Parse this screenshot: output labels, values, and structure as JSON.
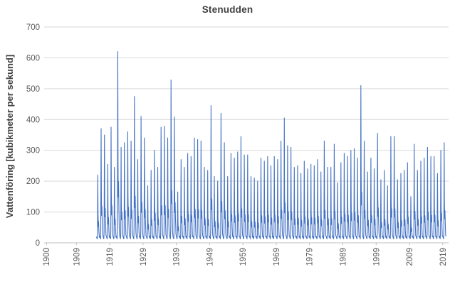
{
  "colors": {
    "line": "#4472C4",
    "gridline": "#D9D9D9",
    "axis_line": "#BFBFBF",
    "tick_label": "#595959",
    "title_text": "#404040",
    "background": "#FFFFFF"
  },
  "chart_data": {
    "type": "line",
    "title": "Stenudden",
    "ylabel": "Vattenföring [kubikmeter per sekund]",
    "xlabel": "",
    "legend": "none",
    "grid": "horizontal-only",
    "ylim": [
      0,
      700
    ],
    "y_ticks": [
      0,
      100,
      200,
      300,
      400,
      500,
      600,
      700
    ],
    "x_ticks": [
      1900,
      1909,
      1919,
      1929,
      1939,
      1949,
      1959,
      1969,
      1979,
      1989,
      1999,
      2009,
      2019
    ],
    "x_range_shown": [
      1900,
      2020
    ],
    "intra_year_shape_note": "Seasonal time series: winter baseline ~10-30 m3/s, sharp early-summer snowmelt peak, small secondary autumn bump; data begins ~1915 and ends 2019.",
    "series": [
      {
        "name": "Vattenföring Stenudden",
        "unit": "kubikmeter per sekund",
        "years": [
          1915,
          1916,
          1917,
          1918,
          1919,
          1920,
          1921,
          1922,
          1923,
          1924,
          1925,
          1926,
          1927,
          1928,
          1929,
          1930,
          1931,
          1932,
          1933,
          1934,
          1935,
          1936,
          1937,
          1938,
          1939,
          1940,
          1941,
          1942,
          1943,
          1944,
          1945,
          1946,
          1947,
          1948,
          1949,
          1950,
          1951,
          1952,
          1953,
          1954,
          1955,
          1956,
          1957,
          1958,
          1959,
          1960,
          1961,
          1962,
          1963,
          1964,
          1965,
          1966,
          1967,
          1968,
          1969,
          1970,
          1971,
          1972,
          1973,
          1974,
          1975,
          1976,
          1977,
          1978,
          1979,
          1980,
          1981,
          1982,
          1983,
          1984,
          1985,
          1986,
          1987,
          1988,
          1989,
          1990,
          1991,
          1992,
          1993,
          1994,
          1995,
          1996,
          1997,
          1998,
          1999,
          2000,
          2001,
          2002,
          2003,
          2004,
          2005,
          2006,
          2007,
          2008,
          2009,
          2010,
          2011,
          2012,
          2013,
          2014,
          2015,
          2016,
          2017,
          2018,
          2019
        ],
        "annual_peak_values": [
          220,
          370,
          350,
          255,
          375,
          245,
          620,
          310,
          325,
          360,
          330,
          475,
          270,
          410,
          340,
          185,
          235,
          300,
          245,
          375,
          378,
          340,
          528,
          408,
          165,
          270,
          245,
          290,
          280,
          340,
          335,
          330,
          245,
          235,
          445,
          215,
          200,
          420,
          325,
          215,
          290,
          275,
          295,
          345,
          285,
          285,
          215,
          210,
          200,
          275,
          265,
          280,
          250,
          280,
          270,
          330,
          405,
          315,
          310,
          245,
          250,
          225,
          265,
          240,
          255,
          250,
          270,
          230,
          330,
          245,
          245,
          320,
          195,
          260,
          290,
          280,
          300,
          305,
          275,
          510,
          330,
          230,
          275,
          240,
          355,
          205,
          235,
          185,
          345,
          345,
          205,
          225,
          235,
          260,
          150,
          320,
          235,
          265,
          275,
          310,
          280,
          280,
          225,
          300,
          325
        ],
        "winter_baseline": 15
      }
    ]
  }
}
